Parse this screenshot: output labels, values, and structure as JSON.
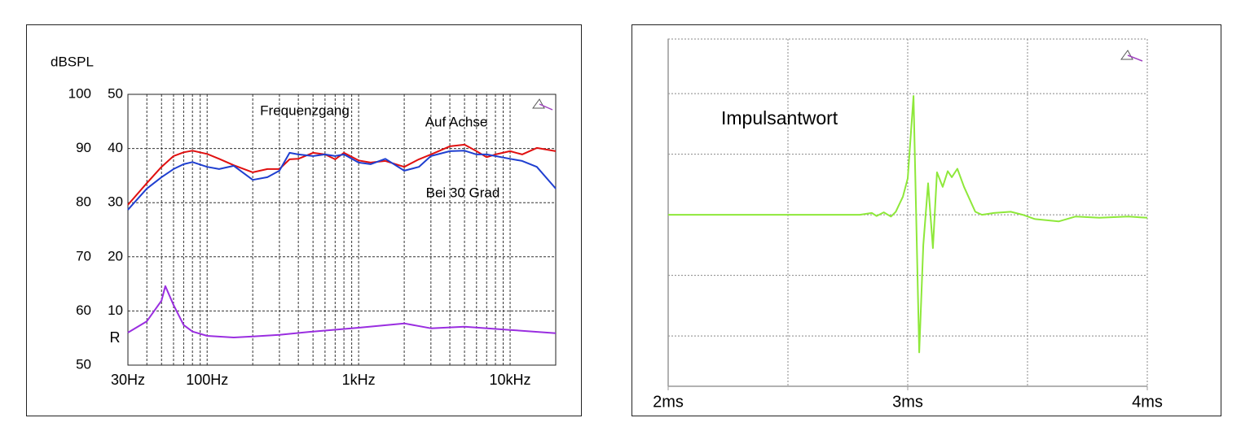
{
  "chart_data": [
    {
      "type": "line",
      "title": "Frequenzgang",
      "ylabel": "dBSPL",
      "y2label": "R",
      "log_x": true,
      "xlim": [
        30,
        20000
      ],
      "xticks": [
        {
          "value": 30,
          "label": "30Hz"
        },
        {
          "value": 100,
          "label": "100Hz"
        },
        {
          "value": 1000,
          "label": "1kHz"
        },
        {
          "value": 10000,
          "label": "10kHz"
        }
      ],
      "xgrid_lines": [
        40,
        50,
        60,
        70,
        80,
        90,
        100,
        200,
        300,
        400,
        500,
        600,
        700,
        800,
        900,
        1000,
        2000,
        3000,
        4000,
        5000,
        6000,
        7000,
        8000,
        9000,
        10000,
        20000
      ],
      "ylim": [
        50,
        100
      ],
      "yticks": [
        50,
        60,
        70,
        80,
        90,
        100
      ],
      "y2lim": [
        0,
        50
      ],
      "y2ticks": [
        10,
        20,
        30,
        40,
        50
      ],
      "grid": true,
      "series": [
        {
          "name": "Auf Achse",
          "color": "#e01010",
          "x": [
            30,
            40,
            50,
            60,
            70,
            80,
            100,
            120,
            150,
            200,
            250,
            300,
            350,
            400,
            500,
            600,
            700,
            800,
            1000,
            1200,
            1500,
            2000,
            2500,
            3000,
            4000,
            5000,
            6000,
            7000,
            8000,
            10000,
            12000,
            15000,
            20000
          ],
          "values": [
            79.6,
            83.6,
            86.6,
            88.6,
            89.3,
            89.6,
            89.0,
            88.1,
            86.9,
            85.6,
            86.2,
            86.2,
            88.0,
            88.1,
            89.2,
            88.9,
            88.0,
            89.2,
            87.8,
            87.4,
            87.7,
            86.6,
            88.0,
            88.9,
            90.4,
            90.7,
            89.5,
            88.4,
            88.9,
            89.5,
            88.9,
            90.1,
            89.5
          ]
        },
        {
          "name": "Bei 30 Grad",
          "color": "#1f3fd0",
          "x": [
            30,
            40,
            50,
            60,
            70,
            80,
            100,
            120,
            150,
            200,
            250,
            300,
            350,
            400,
            500,
            600,
            700,
            800,
            1000,
            1200,
            1500,
            2000,
            2500,
            3000,
            4000,
            5000,
            6000,
            7000,
            8000,
            10000,
            12000,
            15000,
            20000
          ],
          "values": [
            78.7,
            82.6,
            84.7,
            86.2,
            87.1,
            87.5,
            86.6,
            86.2,
            86.8,
            84.2,
            84.7,
            85.9,
            89.2,
            88.9,
            88.6,
            88.9,
            88.6,
            88.9,
            87.4,
            87.1,
            88.1,
            85.9,
            86.6,
            88.6,
            89.5,
            89.6,
            88.9,
            88.9,
            88.6,
            88.1,
            87.7,
            86.6,
            82.6
          ]
        },
        {
          "color": "#9a2ee0",
          "axis": "y2",
          "x": [
            30,
            40,
            50,
            53,
            60,
            70,
            80,
            100,
            150,
            200,
            300,
            500,
            1000,
            2000,
            3000,
            5000,
            10000,
            20000
          ],
          "values": [
            6.0,
            8.1,
            11.9,
            14.6,
            11.1,
            7.4,
            6.2,
            5.4,
            5.1,
            5.3,
            5.6,
            6.2,
            6.9,
            7.7,
            6.8,
            7.1,
            6.5,
            5.9
          ]
        }
      ]
    },
    {
      "type": "line",
      "title": "Impulsantwort",
      "xlim": [
        2,
        4
      ],
      "xticks": [
        {
          "value": 2,
          "label": "2ms"
        },
        {
          "value": 3,
          "label": "3ms"
        },
        {
          "value": 4,
          "label": "4ms"
        }
      ],
      "xgrid_lines": [
        2.5,
        3,
        3.5
      ],
      "ylim": [
        -2.83,
        2.9
      ],
      "ygrid_lines": [
        -2,
        -1,
        0,
        1,
        2
      ],
      "grid": true,
      "series": [
        {
          "color": "#8ee83a",
          "x": [
            2,
            2.8,
            2.85,
            2.87,
            2.9,
            2.93,
            2.95,
            2.98,
            3.0,
            3.024,
            3.048,
            3.065,
            3.085,
            3.105,
            3.122,
            3.146,
            3.167,
            3.184,
            3.207,
            3.235,
            3.282,
            3.31,
            3.36,
            3.43,
            3.48,
            3.53,
            3.63,
            3.7,
            3.8,
            3.92,
            4.0
          ],
          "values": [
            0,
            0,
            0.03,
            -0.02,
            0.04,
            -0.03,
            0.05,
            0.3,
            0.6,
            1.96,
            -2.27,
            -0.5,
            0.52,
            -0.55,
            0.7,
            0.46,
            0.72,
            0.62,
            0.76,
            0.46,
            0.05,
            0,
            0.03,
            0.05,
            0,
            -0.07,
            -0.11,
            -0.03,
            -0.05,
            -0.03,
            -0.05
          ]
        }
      ]
    }
  ]
}
